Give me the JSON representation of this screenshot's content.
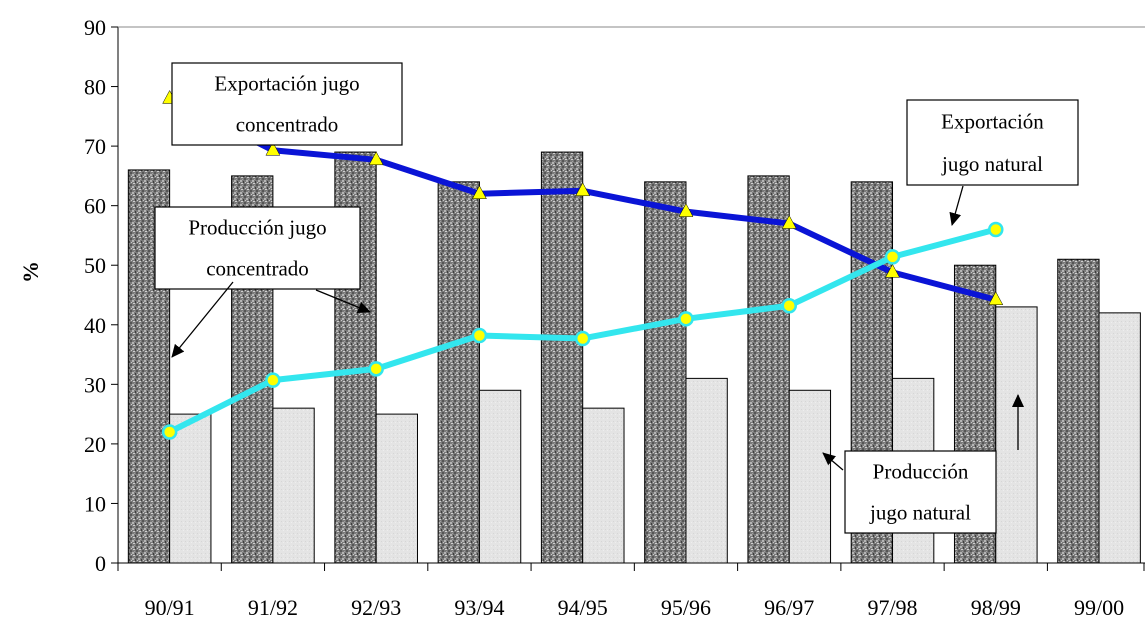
{
  "chart_data": {
    "type": "bar",
    "categories": [
      "90/91",
      "91/92",
      "92/93",
      "93/94",
      "94/95",
      "95/96",
      "96/97",
      "97/98",
      "98/99",
      "99/00"
    ],
    "ylabel": "%",
    "ylim": [
      0,
      90
    ],
    "yticks": [
      0,
      10,
      20,
      30,
      40,
      50,
      60,
      70,
      80,
      90
    ],
    "series": [
      {
        "name": "Producción jugo concentrado",
        "kind": "bar",
        "pattern": "granite-dark",
        "values": [
          66,
          65,
          69,
          64,
          69,
          64,
          65,
          64,
          50,
          51
        ]
      },
      {
        "name": "Producción jugo natural",
        "kind": "bar",
        "pattern": "light-gray",
        "values": [
          25,
          26,
          25,
          29,
          26,
          31,
          29,
          31,
          43,
          42
        ]
      },
      {
        "name": "Exportación jugo concentrado",
        "kind": "line",
        "color": "#0a14d6",
        "marker": "triangle",
        "marker_color": "#ffff00",
        "values": [
          78,
          69.3,
          67.7,
          62,
          62.5,
          59,
          57,
          48.8,
          44.2,
          null
        ]
      },
      {
        "name": "Exportación jugo natural",
        "kind": "line",
        "color": "#33e6ee",
        "marker": "circle",
        "marker_color": "#ffff00",
        "values": [
          22,
          30.7,
          32.6,
          38.2,
          37.7,
          41,
          43.2,
          51.4,
          56,
          null
        ]
      }
    ],
    "callouts": {
      "exp_conc": [
        "Exportación jugo",
        "concentrado"
      ],
      "exp_nat": [
        "Exportación",
        "jugo natural"
      ],
      "prod_conc": [
        "Producción jugo",
        "concentrado"
      ],
      "prod_nat": [
        "Producción",
        "jugo natural"
      ]
    },
    "grid": false,
    "legend": "none"
  }
}
